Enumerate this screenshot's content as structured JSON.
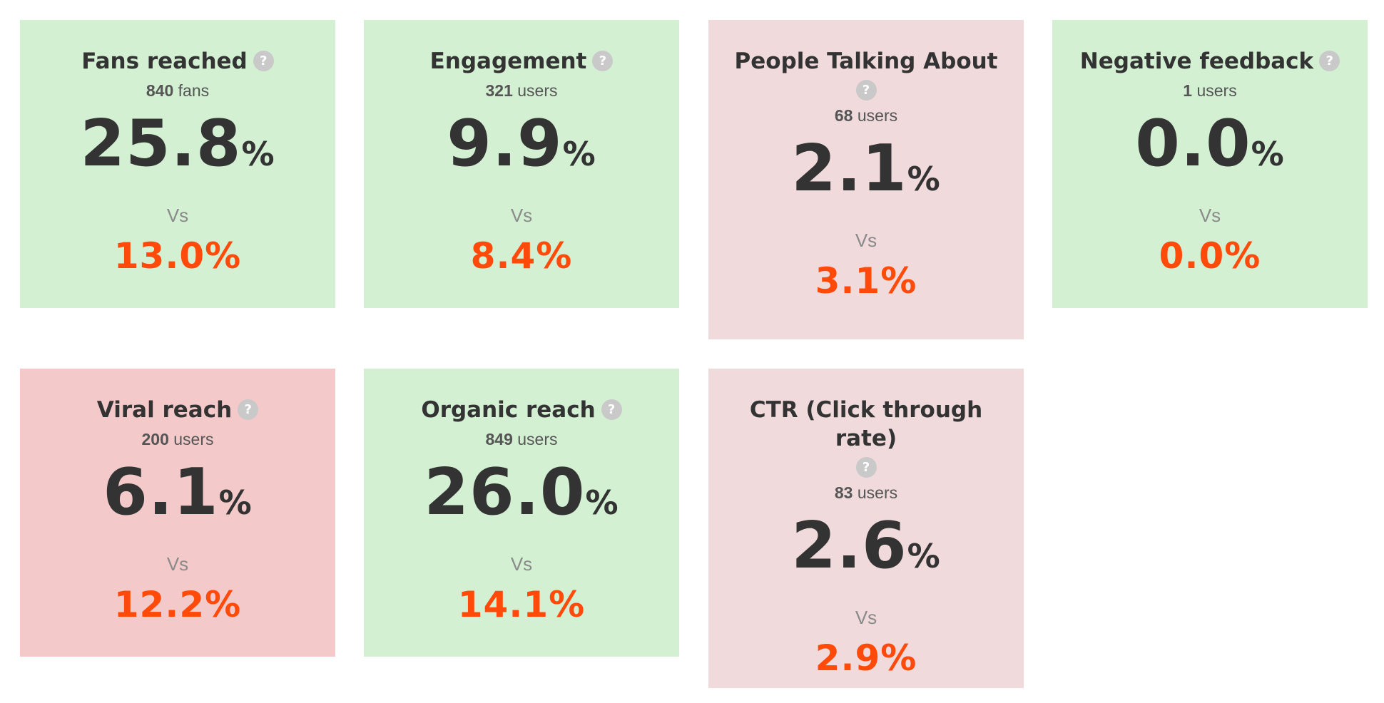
{
  "colors": {
    "good": "#d3f0d3",
    "neutral_bad": "#f0dadc",
    "bad": "#f3c9c9",
    "accent": "#ff4a0a",
    "text": "#333333"
  },
  "help_glyph": "?",
  "vs_label": "Vs",
  "percent_sign": "%",
  "cards": [
    {
      "title": "Fans reached",
      "count": "840",
      "unit": "fans",
      "value": "25.8",
      "compare": "13.0%",
      "status": "good"
    },
    {
      "title": "Engagement",
      "count": "321",
      "unit": "users",
      "value": "9.9",
      "compare": "8.4%",
      "status": "good"
    },
    {
      "title": "People Talking About",
      "count": "68",
      "unit": "users",
      "value": "2.1",
      "compare": "3.1%",
      "status": "neutral_bad"
    },
    {
      "title": "Negative feedback",
      "count": "1",
      "unit": "users",
      "value": "0.0",
      "compare": "0.0%",
      "status": "good"
    },
    {
      "title": "Viral reach",
      "count": "200",
      "unit": "users",
      "value": "6.1",
      "compare": "12.2%",
      "status": "bad"
    },
    {
      "title": "Organic reach",
      "count": "849",
      "unit": "users",
      "value": "26.0",
      "compare": "14.1%",
      "status": "good"
    },
    {
      "title": "CTR (Click through rate)",
      "count": "83",
      "unit": "users",
      "value": "2.6",
      "compare": "2.9%",
      "status": "neutral_bad"
    }
  ]
}
